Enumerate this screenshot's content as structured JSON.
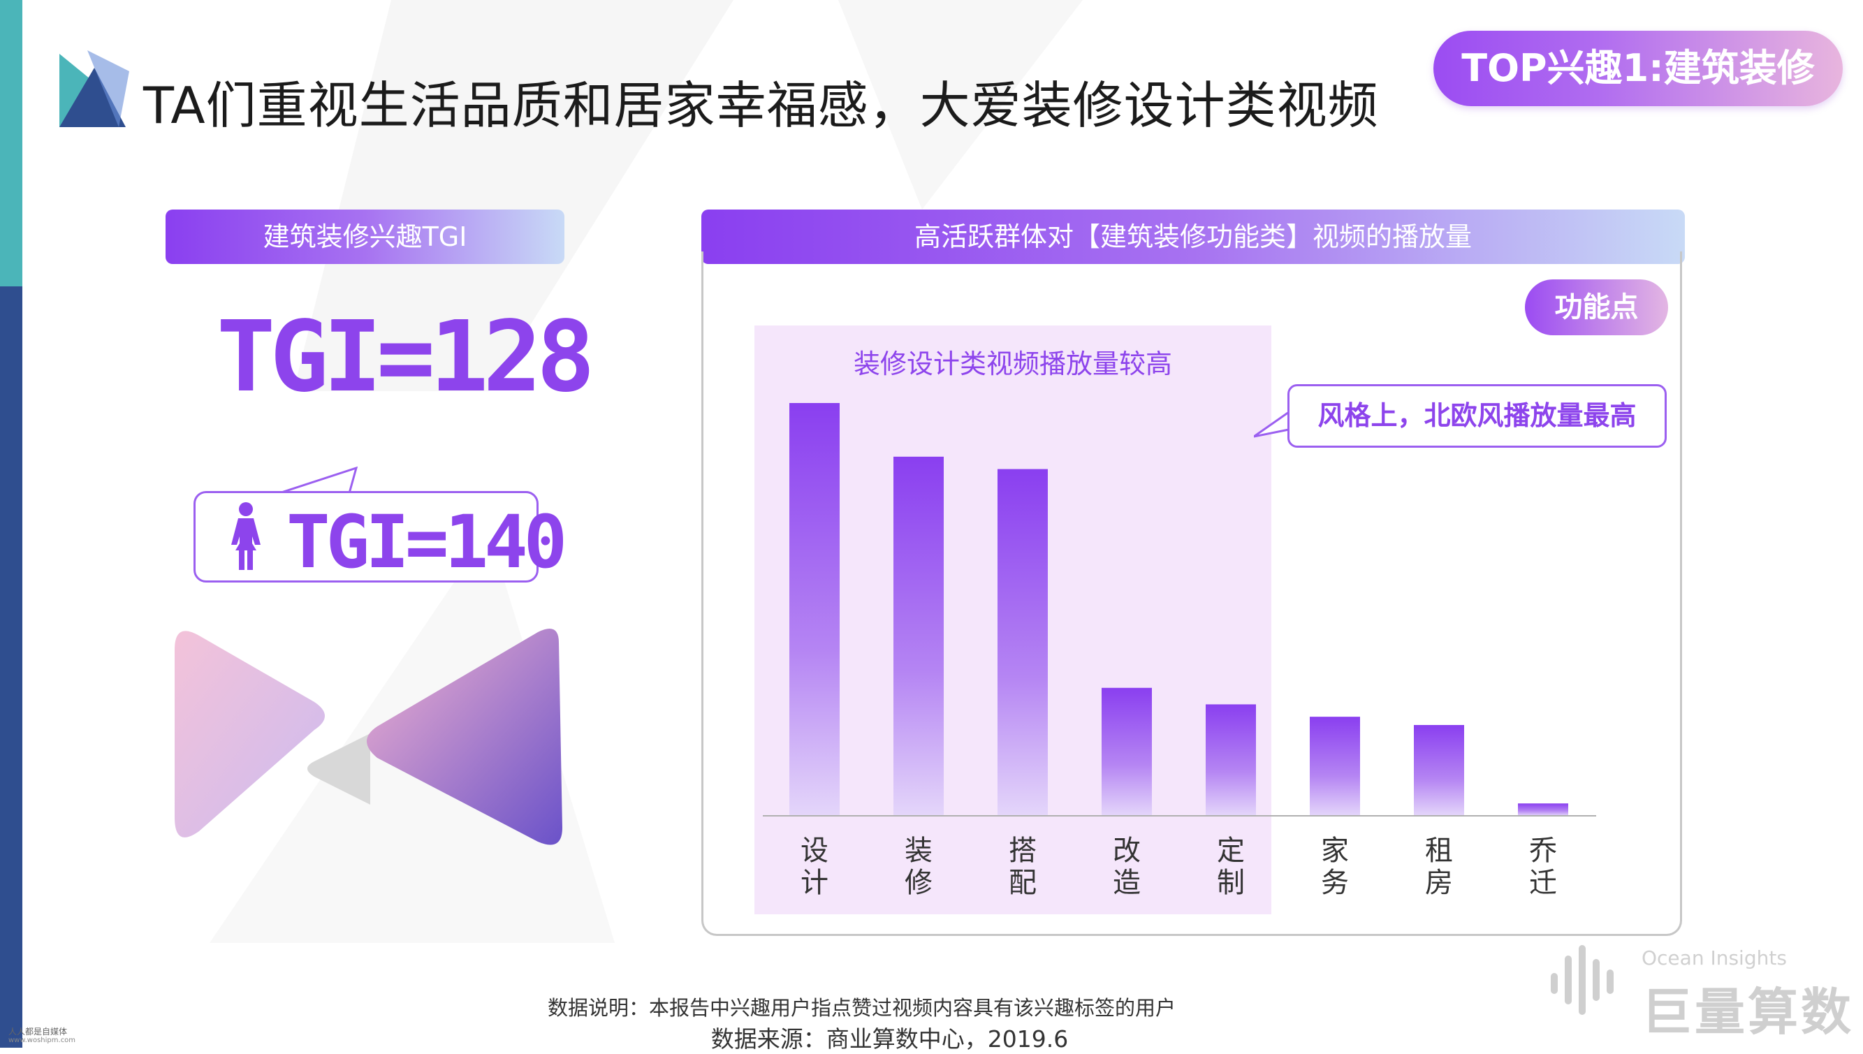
{
  "header": {
    "title": "TA们重视生活品质和居家幸福感，大爱装修设计类视频",
    "badge": "TOP兴趣1:建筑装修"
  },
  "left_panel": {
    "header": "建筑装修兴趣TGI",
    "tgi_main": "TGI=128",
    "tgi_female": "TGI=140"
  },
  "right_panel": {
    "header": "高活跃群体对【建筑装修功能类】视频的播放量",
    "function_badge": "功能点",
    "highlight_label": "装修设计类视频播放量较高",
    "callout": "风格上，北欧风播放量最高"
  },
  "chart_data": {
    "type": "bar",
    "title": "高活跃群体对【建筑装修功能类】视频的播放量",
    "categories": [
      "设计",
      "装修",
      "搭配",
      "改造",
      "定制",
      "家务",
      "租房",
      "乔迁"
    ],
    "values": [
      100,
      87,
      84,
      31,
      27,
      24,
      22,
      3
    ],
    "ylim": [
      0,
      100
    ],
    "grid": false,
    "colors": {
      "bar_top": "#8a3ff0",
      "bar_bottom": "#dcc8f8"
    }
  },
  "footer": {
    "note": "数据说明：本报告中兴趣用户指点赞过视频内容具有该兴趣标签的用户",
    "source": "数据来源：商业算数中心，2019.6"
  },
  "logo": {
    "en": "Ocean Insights",
    "cn": "巨量算数"
  },
  "watermark": {
    "line1": "人人都是自媒体",
    "line2": "www.woshipm.com"
  },
  "colors": {
    "accent": "#8d44ec",
    "sidebar_top": "#4bb5b9",
    "sidebar_bottom": "#2f4e8f",
    "highlight_bg": "#f5e6fb"
  }
}
